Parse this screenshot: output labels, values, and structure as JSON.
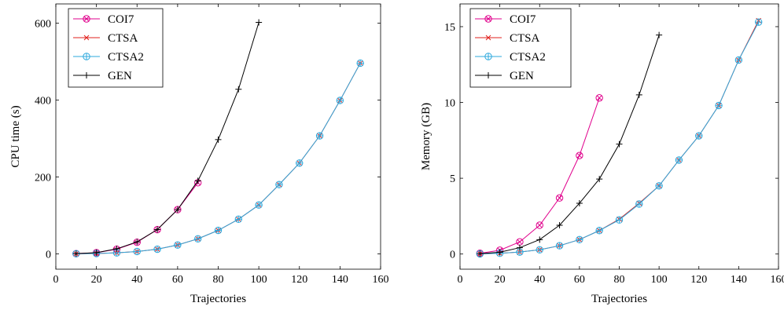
{
  "chart_data": [
    {
      "type": "line",
      "xlabel": "Trajectories",
      "ylabel": "CPU time (s)",
      "xlim": [
        0,
        160
      ],
      "ylim": [
        -40,
        650
      ],
      "xticks": [
        0,
        20,
        40,
        60,
        80,
        100,
        120,
        140,
        160
      ],
      "yticks": [
        0,
        200,
        400,
        600
      ],
      "legend_position": "top-left",
      "series": [
        {
          "name": "COI7",
          "color": "#e0008c",
          "marker": "otimes",
          "x": [
            10,
            20,
            30,
            40,
            50,
            60,
            70
          ],
          "y": [
            0.5,
            3,
            12,
            30,
            63,
            115,
            185
          ]
        },
        {
          "name": "CTSA",
          "color": "#e0201c",
          "marker": "x",
          "x": [
            10,
            20,
            30,
            40,
            50,
            60,
            70,
            80,
            90,
            100,
            110,
            120,
            130,
            140,
            150
          ],
          "y": [
            0.1,
            0.8,
            2.5,
            6,
            12,
            23,
            39,
            61,
            90,
            127,
            180,
            236,
            307,
            399,
            496
          ]
        },
        {
          "name": "CTSA2",
          "color": "#2ea9dd",
          "marker": "oplus",
          "x": [
            10,
            20,
            30,
            40,
            50,
            60,
            70,
            80,
            90,
            100,
            110,
            120,
            130,
            140,
            150
          ],
          "y": [
            0.1,
            0.8,
            2.5,
            6,
            12,
            23,
            39,
            61,
            90,
            127,
            180,
            236,
            307,
            399,
            496
          ]
        },
        {
          "name": "GEN",
          "color": "#000000",
          "marker": "+",
          "x": [
            10,
            20,
            30,
            40,
            50,
            60,
            70,
            80,
            90,
            100
          ],
          "y": [
            0.5,
            3,
            13,
            31,
            63,
            115,
            190,
            297,
            428,
            602
          ]
        }
      ]
    },
    {
      "type": "line",
      "xlabel": "Trajectories",
      "ylabel": "Memory (GB)",
      "xlim": [
        0,
        160
      ],
      "ylim": [
        -1,
        16.5
      ],
      "xticks": [
        0,
        20,
        40,
        60,
        80,
        100,
        120,
        140,
        160
      ],
      "yticks": [
        0,
        5,
        10,
        15
      ],
      "legend_position": "top-left",
      "series": [
        {
          "name": "COI7",
          "color": "#e0008c",
          "marker": "otimes",
          "x": [
            10,
            20,
            30,
            40,
            50,
            60,
            70
          ],
          "y": [
            0.05,
            0.25,
            0.8,
            1.9,
            3.7,
            6.5,
            10.3
          ]
        },
        {
          "name": "CTSA",
          "color": "#e0201c",
          "marker": "x",
          "x": [
            10,
            20,
            30,
            40,
            50,
            60,
            70,
            80,
            90,
            100,
            110,
            120,
            130,
            140,
            150
          ],
          "y": [
            0.01,
            0.05,
            0.13,
            0.28,
            0.55,
            0.95,
            1.55,
            2.3,
            3.35,
            4.5,
            6.2,
            7.8,
            9.8,
            12.8,
            15.4
          ]
        },
        {
          "name": "CTSA2",
          "color": "#2ea9dd",
          "marker": "oplus",
          "x": [
            10,
            20,
            30,
            40,
            50,
            60,
            70,
            80,
            90,
            100,
            110,
            120,
            130,
            140,
            150
          ],
          "y": [
            0.01,
            0.05,
            0.13,
            0.28,
            0.55,
            0.95,
            1.55,
            2.25,
            3.3,
            4.5,
            6.2,
            7.8,
            9.8,
            12.8,
            15.3
          ]
        },
        {
          "name": "GEN",
          "color": "#000000",
          "marker": "+",
          "x": [
            10,
            20,
            30,
            40,
            50,
            60,
            70,
            80,
            90,
            100
          ],
          "y": [
            0.02,
            0.12,
            0.42,
            0.95,
            1.9,
            3.35,
            4.95,
            7.25,
            10.5,
            14.45
          ]
        }
      ]
    }
  ]
}
